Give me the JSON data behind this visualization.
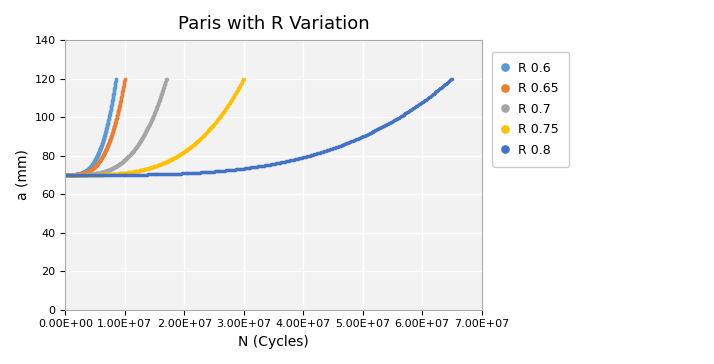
{
  "title": "Paris with R Variation",
  "xlabel": "N (Cycles)",
  "ylabel": "a (mm)",
  "ylim": [
    0,
    140
  ],
  "xlim": [
    0,
    70000000.0
  ],
  "series": [
    {
      "label": "R 0.6",
      "color": "#5B9BD5",
      "N_max": 8500000.0,
      "a0": 70,
      "a_max": 120,
      "exponent": 3.5
    },
    {
      "label": "R 0.65",
      "color": "#ED7D31",
      "N_max": 10000000.0,
      "a0": 70,
      "a_max": 120,
      "exponent": 3.5
    },
    {
      "label": "R 0.7",
      "color": "#A5A5A5",
      "N_max": 17000000.0,
      "a0": 70,
      "a_max": 120,
      "exponent": 3.5
    },
    {
      "label": "R 0.75",
      "color": "#FFC000",
      "N_max": 30000000.0,
      "a0": 70,
      "a_max": 120,
      "exponent": 3.5
    },
    {
      "label": "R 0.8",
      "color": "#4472C4",
      "N_max": 65000000.0,
      "a0": 70,
      "a_max": 120,
      "exponent": 3.5
    }
  ],
  "x_ticks": [
    0,
    10000000.0,
    20000000.0,
    30000000.0,
    40000000.0,
    50000000.0,
    60000000.0,
    70000000.0
  ],
  "x_tick_labels": [
    "0.00E+00",
    "1.00E+07",
    "2.00E+07",
    "3.00E+07",
    "4.00E+07",
    "5.00E+07",
    "6.00E+07",
    "7.00E+07"
  ],
  "y_ticks": [
    0,
    20,
    40,
    60,
    80,
    100,
    120,
    140
  ],
  "grid": true,
  "plot_bg_color": "#F2F2F2",
  "background_color": "#FFFFFF",
  "marker": "o",
  "markersize": 2.5,
  "linewidth": 0,
  "title_fontsize": 13,
  "axis_fontsize": 10,
  "tick_fontsize": 8,
  "legend_fontsize": 9
}
